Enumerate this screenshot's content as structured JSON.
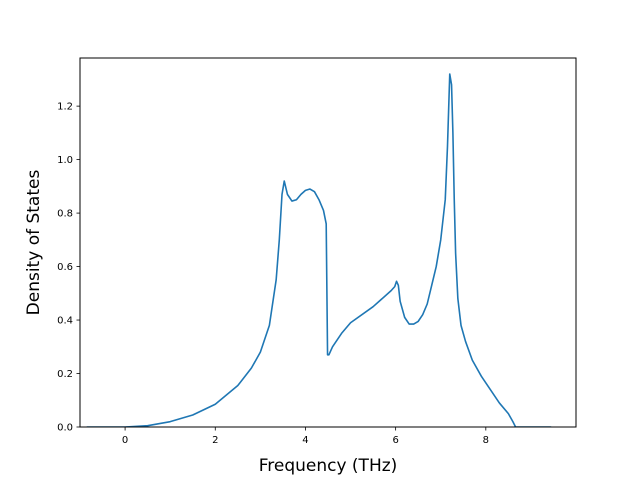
{
  "chart_data": {
    "type": "line",
    "title": "",
    "xlabel": "Frequency (THz)",
    "ylabel": "Density of States",
    "xlim": [
      -1.0,
      10.0
    ],
    "ylim": [
      0.0,
      1.38
    ],
    "xticks": [
      0,
      2,
      4,
      6,
      8
    ],
    "yticks": [
      0.0,
      0.2,
      0.4,
      0.6,
      0.8,
      1.0,
      1.2
    ],
    "xtick_labels": [
      "0",
      "2",
      "4",
      "6",
      "8"
    ],
    "ytick_labels": [
      "0.0",
      "0.2",
      "0.4",
      "0.6",
      "0.8",
      "1.0",
      "1.2"
    ],
    "grid": false,
    "colors": {
      "line": "#1f77b4",
      "axes": "#000000"
    },
    "series": [
      {
        "x": [
          -0.85,
          0.0,
          0.5,
          1.0,
          1.5,
          2.0,
          2.5,
          2.8,
          3.0,
          3.2,
          3.35,
          3.42,
          3.48,
          3.53,
          3.6,
          3.7,
          3.8,
          3.9,
          4.0,
          4.1,
          4.2,
          4.3,
          4.4,
          4.46,
          4.49,
          4.52,
          4.6,
          4.8,
          5.0,
          5.5,
          5.9,
          5.98,
          6.02,
          6.06,
          6.1,
          6.2,
          6.3,
          6.4,
          6.5,
          6.6,
          6.7,
          6.8,
          6.9,
          7.0,
          7.1,
          7.15,
          7.2,
          7.24,
          7.27,
          7.3,
          7.33,
          7.38,
          7.45,
          7.55,
          7.7,
          7.9,
          8.1,
          8.3,
          8.5,
          8.6,
          8.66,
          8.8,
          9.45
        ],
        "y": [
          0.0,
          0.0,
          0.005,
          0.02,
          0.045,
          0.085,
          0.155,
          0.22,
          0.28,
          0.38,
          0.55,
          0.7,
          0.87,
          0.92,
          0.87,
          0.845,
          0.85,
          0.87,
          0.885,
          0.89,
          0.88,
          0.85,
          0.81,
          0.76,
          0.27,
          0.27,
          0.3,
          0.35,
          0.39,
          0.45,
          0.51,
          0.525,
          0.545,
          0.53,
          0.47,
          0.41,
          0.385,
          0.385,
          0.395,
          0.42,
          0.46,
          0.53,
          0.6,
          0.7,
          0.85,
          1.05,
          1.32,
          1.28,
          1.1,
          0.85,
          0.65,
          0.48,
          0.38,
          0.32,
          0.25,
          0.19,
          0.14,
          0.09,
          0.05,
          0.02,
          0.0,
          0.0,
          0.0
        ]
      }
    ]
  }
}
